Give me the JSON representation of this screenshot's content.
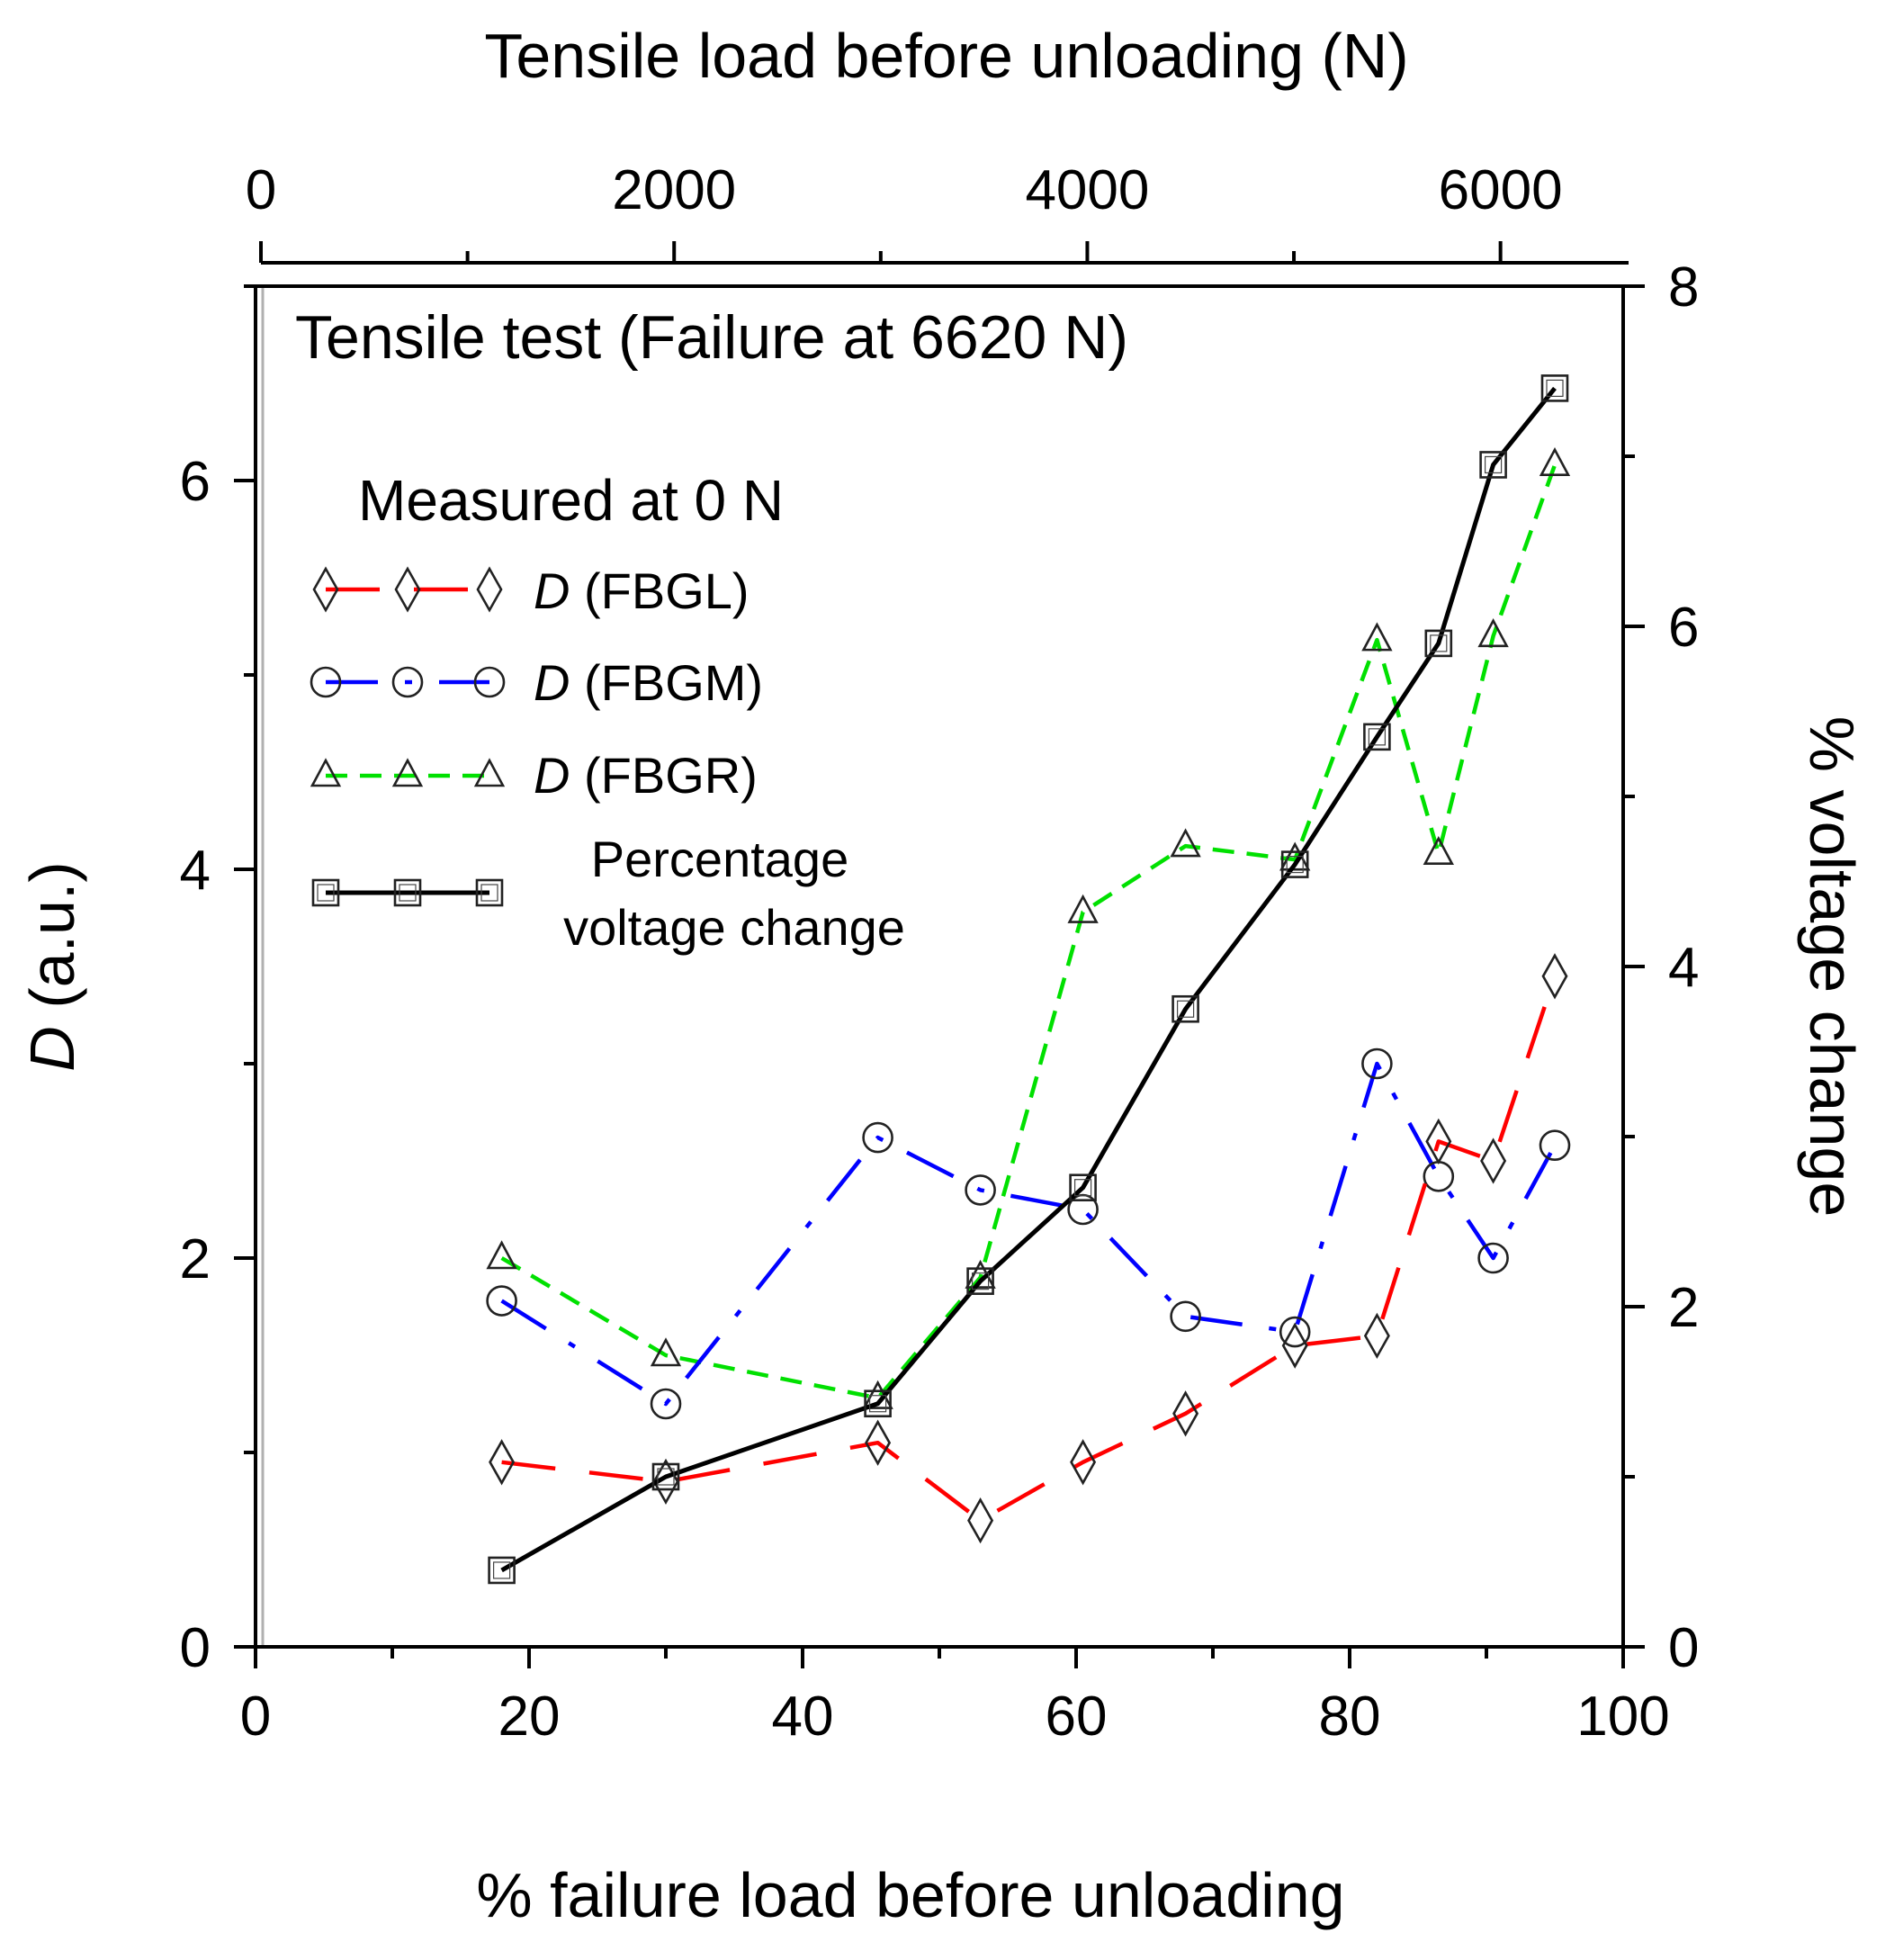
{
  "chart_data": {
    "type": "line",
    "title": "Tensile test (Failure at 6620 N)",
    "xlabel": "% failure load before unloading",
    "x2label": "Tensile load before unloading (N)",
    "ylabel_italic": "D",
    "ylabel_rest": " (a.u.)",
    "y2label": "% voltage change",
    "xlim": [
      0,
      100
    ],
    "ylim": [
      0,
      7
    ],
    "x2lim": [
      0,
      6620
    ],
    "y2lim": [
      0,
      8
    ],
    "xticks": [
      "0",
      "20",
      "40",
      "60",
      "80",
      "100"
    ],
    "yticks": [
      "0",
      "2",
      "4",
      "6"
    ],
    "x2ticks": [
      "0",
      "2000",
      "4000",
      "6000"
    ],
    "y2ticks": [
      "0",
      "2",
      "4",
      "6",
      "8"
    ],
    "legend_title": "Measured at 0 N",
    "legend_position": "upper-left",
    "x": [
      18,
      30,
      45.5,
      53,
      60.5,
      68,
      76,
      82,
      86.5,
      90.5,
      95
    ],
    "series": [
      {
        "name": "FBGL",
        "label_italic": "D",
        "label_rest": " (FBGL)",
        "axis": "left",
        "color": "#ff0000",
        "marker": "diamond",
        "line": "long-dash",
        "values": [
          0.95,
          0.85,
          1.05,
          0.65,
          0.95,
          1.2,
          1.55,
          1.6,
          2.6,
          2.5,
          3.45
        ]
      },
      {
        "name": "FBGM",
        "label_italic": "D",
        "label_rest": " (FBGM)",
        "axis": "left",
        "color": "#0000ff",
        "marker": "circle",
        "line": "dash-dot",
        "values": [
          1.78,
          1.25,
          2.62,
          2.35,
          2.25,
          1.7,
          1.62,
          3.0,
          2.42,
          2.0,
          2.58
        ]
      },
      {
        "name": "FBGR",
        "label_italic": "D",
        "label_rest": " (FBGR)",
        "axis": "left",
        "color": "#00e000",
        "marker": "triangle",
        "line": "short-dash",
        "values": [
          2.0,
          1.5,
          1.28,
          1.9,
          3.78,
          4.12,
          4.05,
          5.18,
          4.08,
          5.2,
          6.08
        ]
      },
      {
        "name": "Percentage voltage change",
        "label_line1": "Percentage",
        "label_line2": "voltage change",
        "axis": "right",
        "color": "#000000",
        "marker": "square",
        "line": "solid",
        "values": [
          0.45,
          1.0,
          1.43,
          2.15,
          2.7,
          3.75,
          4.6,
          5.35,
          5.9,
          6.95,
          7.4
        ]
      }
    ]
  }
}
